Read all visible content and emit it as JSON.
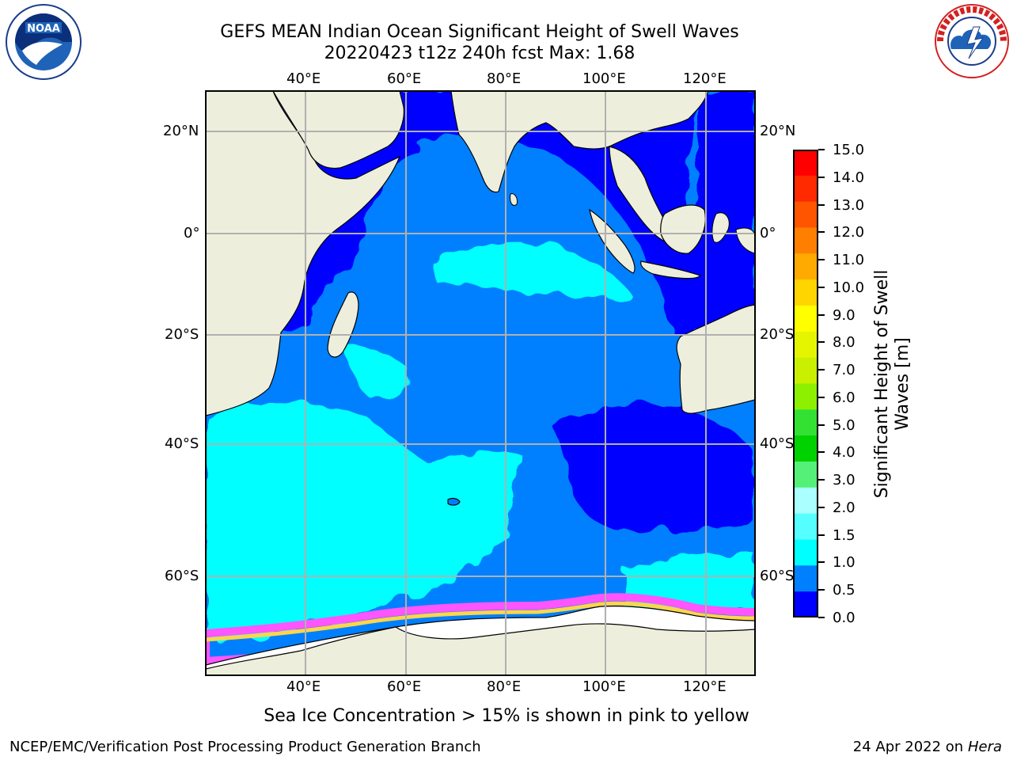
{
  "title_line1": "GEFS MEAN Indian Ocean Significant Height of Swell Waves",
  "title_line2": "20220423 t12z 240h fcst   Max: 1.68",
  "lon_ticks": [
    "40°E",
    "60°E",
    "80°E",
    "100°E",
    "120°E"
  ],
  "lat_ticks_left": [
    "20°N",
    "0°",
    "20°S",
    "40°S",
    "60°S"
  ],
  "lat_ticks_right": [
    "20°N",
    "0°",
    "20°S",
    "40°S",
    "60°S"
  ],
  "colorbar": {
    "label": "Significant Height of Swell Waves [m]",
    "label_line1": "Significant Height of Swell",
    "label_line2": "Waves [m]",
    "ticks": [
      "15.0",
      "14.0",
      "13.0",
      "12.0",
      "11.0",
      "10.0",
      "9.0",
      "8.0",
      "7.0",
      "6.0",
      "5.0",
      "4.0",
      "3.0",
      "2.0",
      "1.5",
      "1.0",
      "0.5",
      "0.0"
    ],
    "colors": [
      "#ff0000",
      "#ff2a00",
      "#ff5500",
      "#ff8000",
      "#ffaa00",
      "#ffd500",
      "#ffff00",
      "#e5f500",
      "#c8f000",
      "#8cf000",
      "#32e132",
      "#00d200",
      "#55f078",
      "#aaffff",
      "#55ffff",
      "#00ffff",
      "#0080ff",
      "#0000ff"
    ]
  },
  "caption": "Sea Ice Concentration > 15% is shown in pink to yellow",
  "footer_left": "NCEP/EMC/Verification Post Processing Product Generation Branch",
  "footer_right_prefix": "24 Apr 2022 on ",
  "footer_right_host": "Hera",
  "logos": {
    "left": "noaa-logo",
    "right": "national-weather-service-logo"
  }
}
